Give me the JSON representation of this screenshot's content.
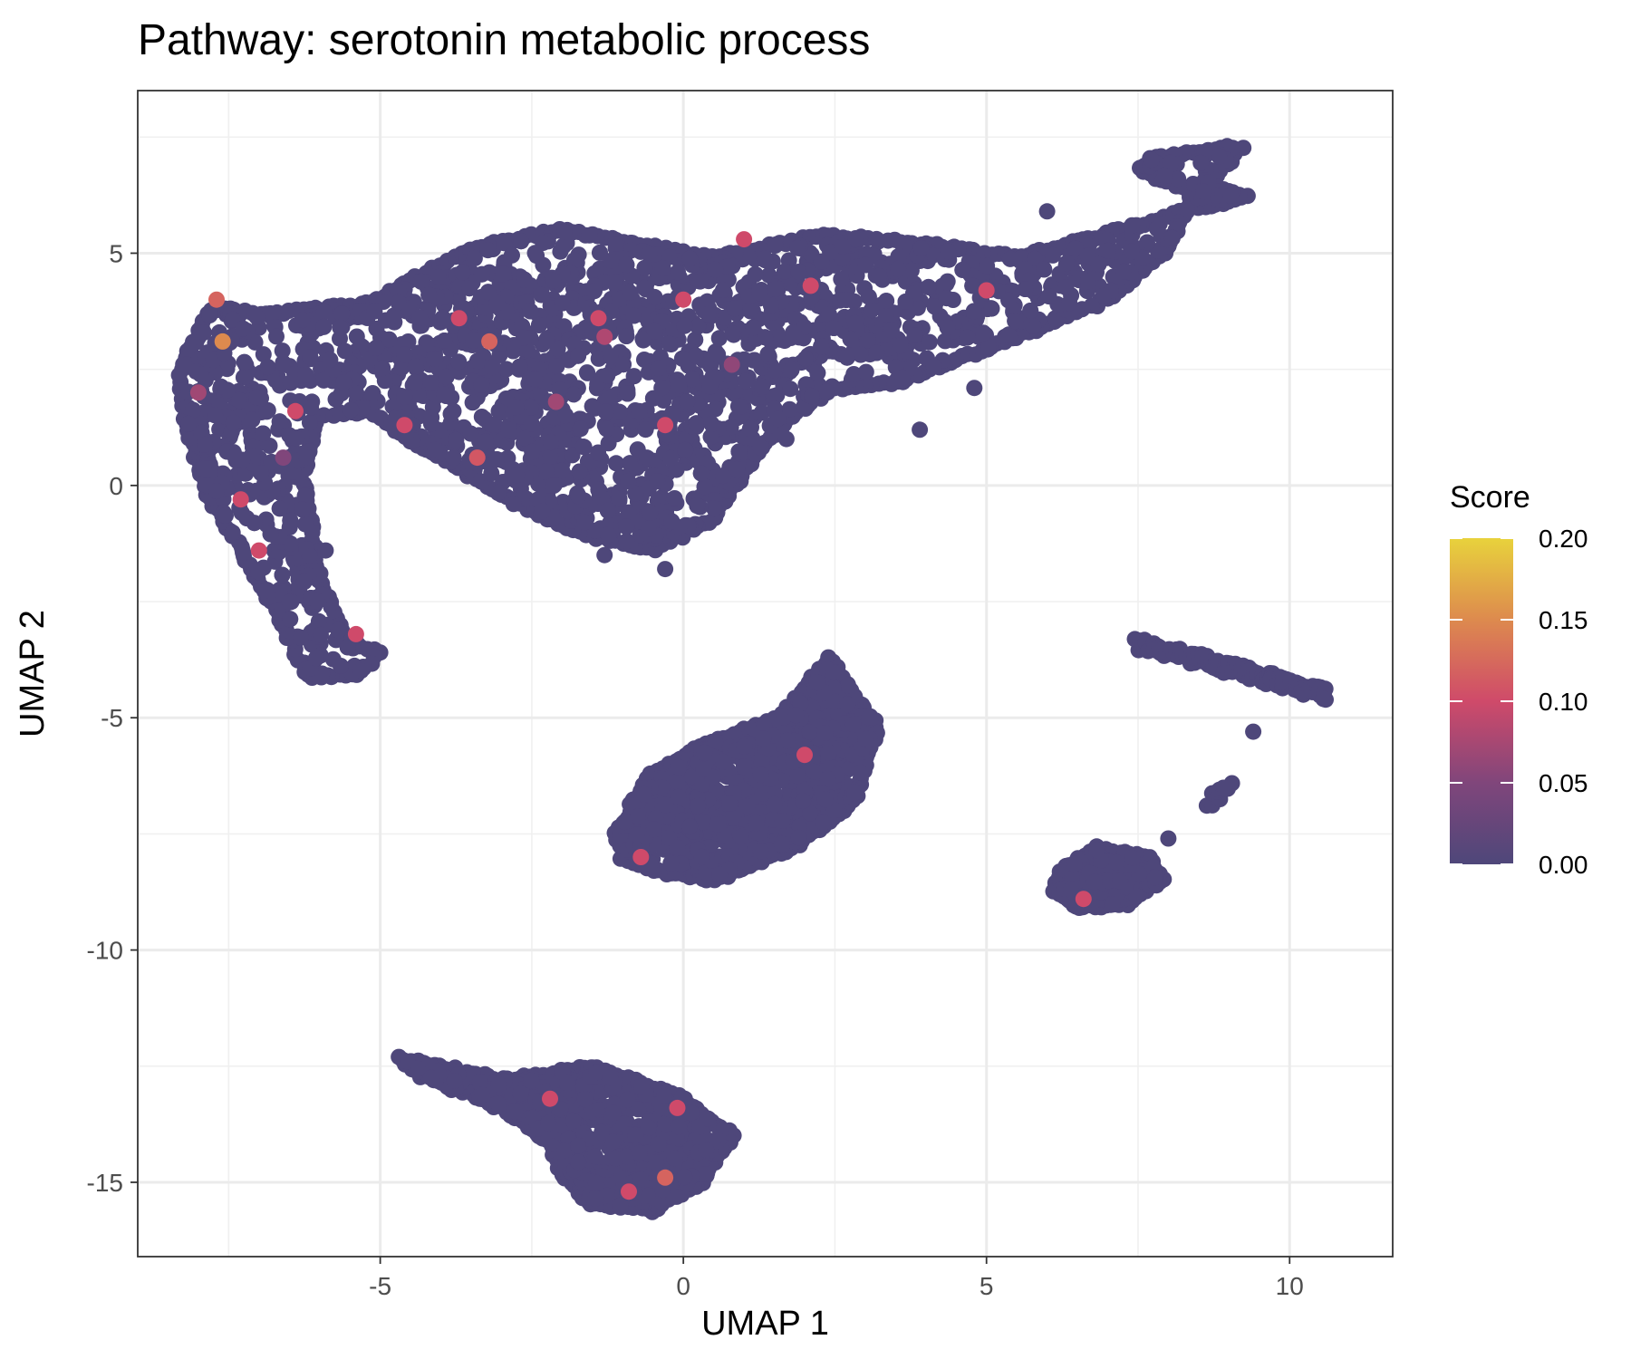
{
  "chart_data": {
    "type": "scatter",
    "title": "Pathway: serotonin metabolic process",
    "xlabel": "UMAP 1",
    "ylabel": "UMAP 2",
    "xlim": [
      -9,
      11.7
    ],
    "ylim": [
      -16.6,
      8.5
    ],
    "xticks": [
      -5,
      0,
      5,
      10
    ],
    "xtick_labels": [
      "-5",
      "0",
      "5",
      "10"
    ],
    "yticks": [
      -15,
      -10,
      -5,
      0,
      5
    ],
    "ytick_labels": [
      "-15",
      "-10",
      "-5",
      "0",
      "5"
    ],
    "grid": true,
    "legend": {
      "title": "Score",
      "placement": "right",
      "type": "colorbar",
      "range": [
        0,
        0.2
      ],
      "ticks": [
        0.0,
        0.05,
        0.1,
        0.15,
        0.2
      ],
      "tick_labels": [
        "0.00",
        "0.05",
        "0.10",
        "0.15",
        "0.20"
      ],
      "colors": [
        "#4e477a",
        "#80467b",
        "#cf4a6a",
        "#dd8a4e",
        "#e8d23c"
      ]
    },
    "base_color": "#4e477a",
    "clusters": [
      {
        "name": "upper-large-region",
        "outline": [
          [
            -8.3,
            2.5
          ],
          [
            -7.8,
            3.8
          ],
          [
            -6.8,
            3.7
          ],
          [
            -5.2,
            3.9
          ],
          [
            -4.5,
            4.4
          ],
          [
            -3.5,
            5.1
          ],
          [
            -2,
            5.5
          ],
          [
            -0.8,
            5.2
          ],
          [
            0.5,
            4.9
          ],
          [
            2.3,
            5.4
          ],
          [
            4,
            5.2
          ],
          [
            5.5,
            4.9
          ],
          [
            7.5,
            5.6
          ],
          [
            8.5,
            6
          ],
          [
            9.3,
            6.2
          ],
          [
            8.7,
            6.5
          ],
          [
            9.2,
            7.3
          ],
          [
            7.8,
            7.1
          ],
          [
            7.5,
            6.8
          ],
          [
            8.4,
            6.3
          ],
          [
            8,
            5.1
          ],
          [
            7,
            4
          ],
          [
            5.5,
            3.2
          ],
          [
            4.5,
            2.7
          ],
          [
            3.5,
            2.2
          ],
          [
            2.5,
            2.1
          ],
          [
            1.8,
            1.5
          ],
          [
            1.2,
            0.7
          ],
          [
            0.5,
            -0.7
          ],
          [
            -0.5,
            -1.4
          ],
          [
            -1.8,
            -1
          ],
          [
            -3,
            -0.2
          ],
          [
            -4.4,
            0.9
          ],
          [
            -5.2,
            1.6
          ],
          [
            -6,
            1.5
          ],
          [
            -6.3,
            0.2
          ],
          [
            -6,
            -2
          ],
          [
            -5.5,
            -3.4
          ],
          [
            -5,
            -3.6
          ],
          [
            -5.4,
            -4.1
          ],
          [
            -6.2,
            -4.1
          ],
          [
            -6.6,
            -3
          ],
          [
            -7.2,
            -1.6
          ],
          [
            -7.8,
            -0.3
          ],
          [
            -8.2,
            1.3
          ]
        ],
        "points": 2600
      },
      {
        "name": "middle-region",
        "outline": [
          [
            -1.1,
            -7.5
          ],
          [
            -0.6,
            -6.3
          ],
          [
            0.3,
            -5.6
          ],
          [
            1.6,
            -5
          ],
          [
            2.4,
            -3.7
          ],
          [
            3.2,
            -5.2
          ],
          [
            2.8,
            -6.8
          ],
          [
            1.8,
            -7.8
          ],
          [
            0.5,
            -8.5
          ],
          [
            -0.5,
            -8.3
          ],
          [
            -1,
            -8
          ]
        ],
        "points": 900
      },
      {
        "name": "lower-region",
        "outline": [
          [
            -4.7,
            -12.3
          ],
          [
            -3,
            -12.8
          ],
          [
            -1.5,
            -12.5
          ],
          [
            0,
            -13.2
          ],
          [
            0.8,
            -14
          ],
          [
            0.3,
            -15
          ],
          [
            -0.5,
            -15.6
          ],
          [
            -1.5,
            -15.5
          ],
          [
            -2,
            -14.8
          ],
          [
            -2.2,
            -14.2
          ],
          [
            -3,
            -13.4
          ],
          [
            -4.5,
            -12.6
          ]
        ],
        "points": 700
      },
      {
        "name": "small-right-region",
        "outline": [
          [
            6.2,
            -8.3
          ],
          [
            6.8,
            -7.8
          ],
          [
            7.7,
            -8
          ],
          [
            7.9,
            -8.5
          ],
          [
            7.3,
            -9
          ],
          [
            6.5,
            -9.1
          ],
          [
            6.1,
            -8.7
          ]
        ],
        "points": 200
      }
    ],
    "strands": [
      {
        "name": "right-strand",
        "from": [
          7.5,
          -3.4
        ],
        "to": [
          10.6,
          -4.5
        ],
        "points": 160
      },
      {
        "name": "right-strand-small",
        "from": [
          8.7,
          -6.8
        ],
        "to": [
          9,
          -6.4
        ],
        "points": 14
      }
    ],
    "outliers": [
      [
        6,
        5.9
      ],
      [
        9.4,
        -5.3
      ],
      [
        8,
        -7.6
      ],
      [
        -0.3,
        -1.8
      ],
      [
        -5.9,
        -1.4
      ],
      [
        4.8,
        2.1
      ],
      [
        1.7,
        1
      ],
      [
        -4.6,
        1.9
      ],
      [
        3.9,
        1.2
      ],
      [
        7.4,
        5.6
      ],
      [
        -2.8,
        -0.4
      ],
      [
        -1.3,
        -1.5
      ]
    ],
    "highlights": [
      {
        "x": 2.1,
        "y": 4.3,
        "score": 0.1
      },
      {
        "x": -2.1,
        "y": 1.8,
        "score": 0.07
      },
      {
        "x": -3.4,
        "y": 0.6,
        "score": 0.11
      },
      {
        "x": -0.3,
        "y": 1.3,
        "score": 0.1
      },
      {
        "x": 0,
        "y": 4,
        "score": 0.1
      },
      {
        "x": -7.7,
        "y": 4,
        "score": 0.12
      },
      {
        "x": -8,
        "y": 2,
        "score": 0.07
      },
      {
        "x": -6.6,
        "y": 0.6,
        "score": 0.05
      },
      {
        "x": -7.3,
        "y": -0.3,
        "score": 0.1
      },
      {
        "x": -5.4,
        "y": -3.2,
        "score": 0.1
      },
      {
        "x": -4.6,
        "y": 1.3,
        "score": 0.1
      },
      {
        "x": -3.2,
        "y": 3.1,
        "score": 0.12
      },
      {
        "x": -1.3,
        "y": 3.2,
        "score": 0.08
      },
      {
        "x": 0.8,
        "y": 2.6,
        "score": 0.06
      },
      {
        "x": 5,
        "y": 4.2,
        "score": 0.1
      },
      {
        "x": 1,
        "y": 5.3,
        "score": 0.1
      },
      {
        "x": -2.2,
        "y": -13.2,
        "score": 0.1
      },
      {
        "x": -0.9,
        "y": -15.2,
        "score": 0.1
      },
      {
        "x": -0.3,
        "y": -14.9,
        "score": 0.12
      },
      {
        "x": -0.1,
        "y": -13.4,
        "score": 0.1
      },
      {
        "x": 6.6,
        "y": -8.9,
        "score": 0.1
      },
      {
        "x": 2,
        "y": -5.8,
        "score": 0.1
      },
      {
        "x": -0.7,
        "y": -8,
        "score": 0.1
      },
      {
        "x": -7.6,
        "y": 3.1,
        "score": 0.15
      },
      {
        "x": -6.4,
        "y": 1.6,
        "score": 0.1
      },
      {
        "x": -1.4,
        "y": 3.6,
        "score": 0.1
      },
      {
        "x": -7,
        "y": -1.4,
        "score": 0.1
      },
      {
        "x": -3.7,
        "y": 3.6,
        "score": 0.1
      }
    ]
  }
}
